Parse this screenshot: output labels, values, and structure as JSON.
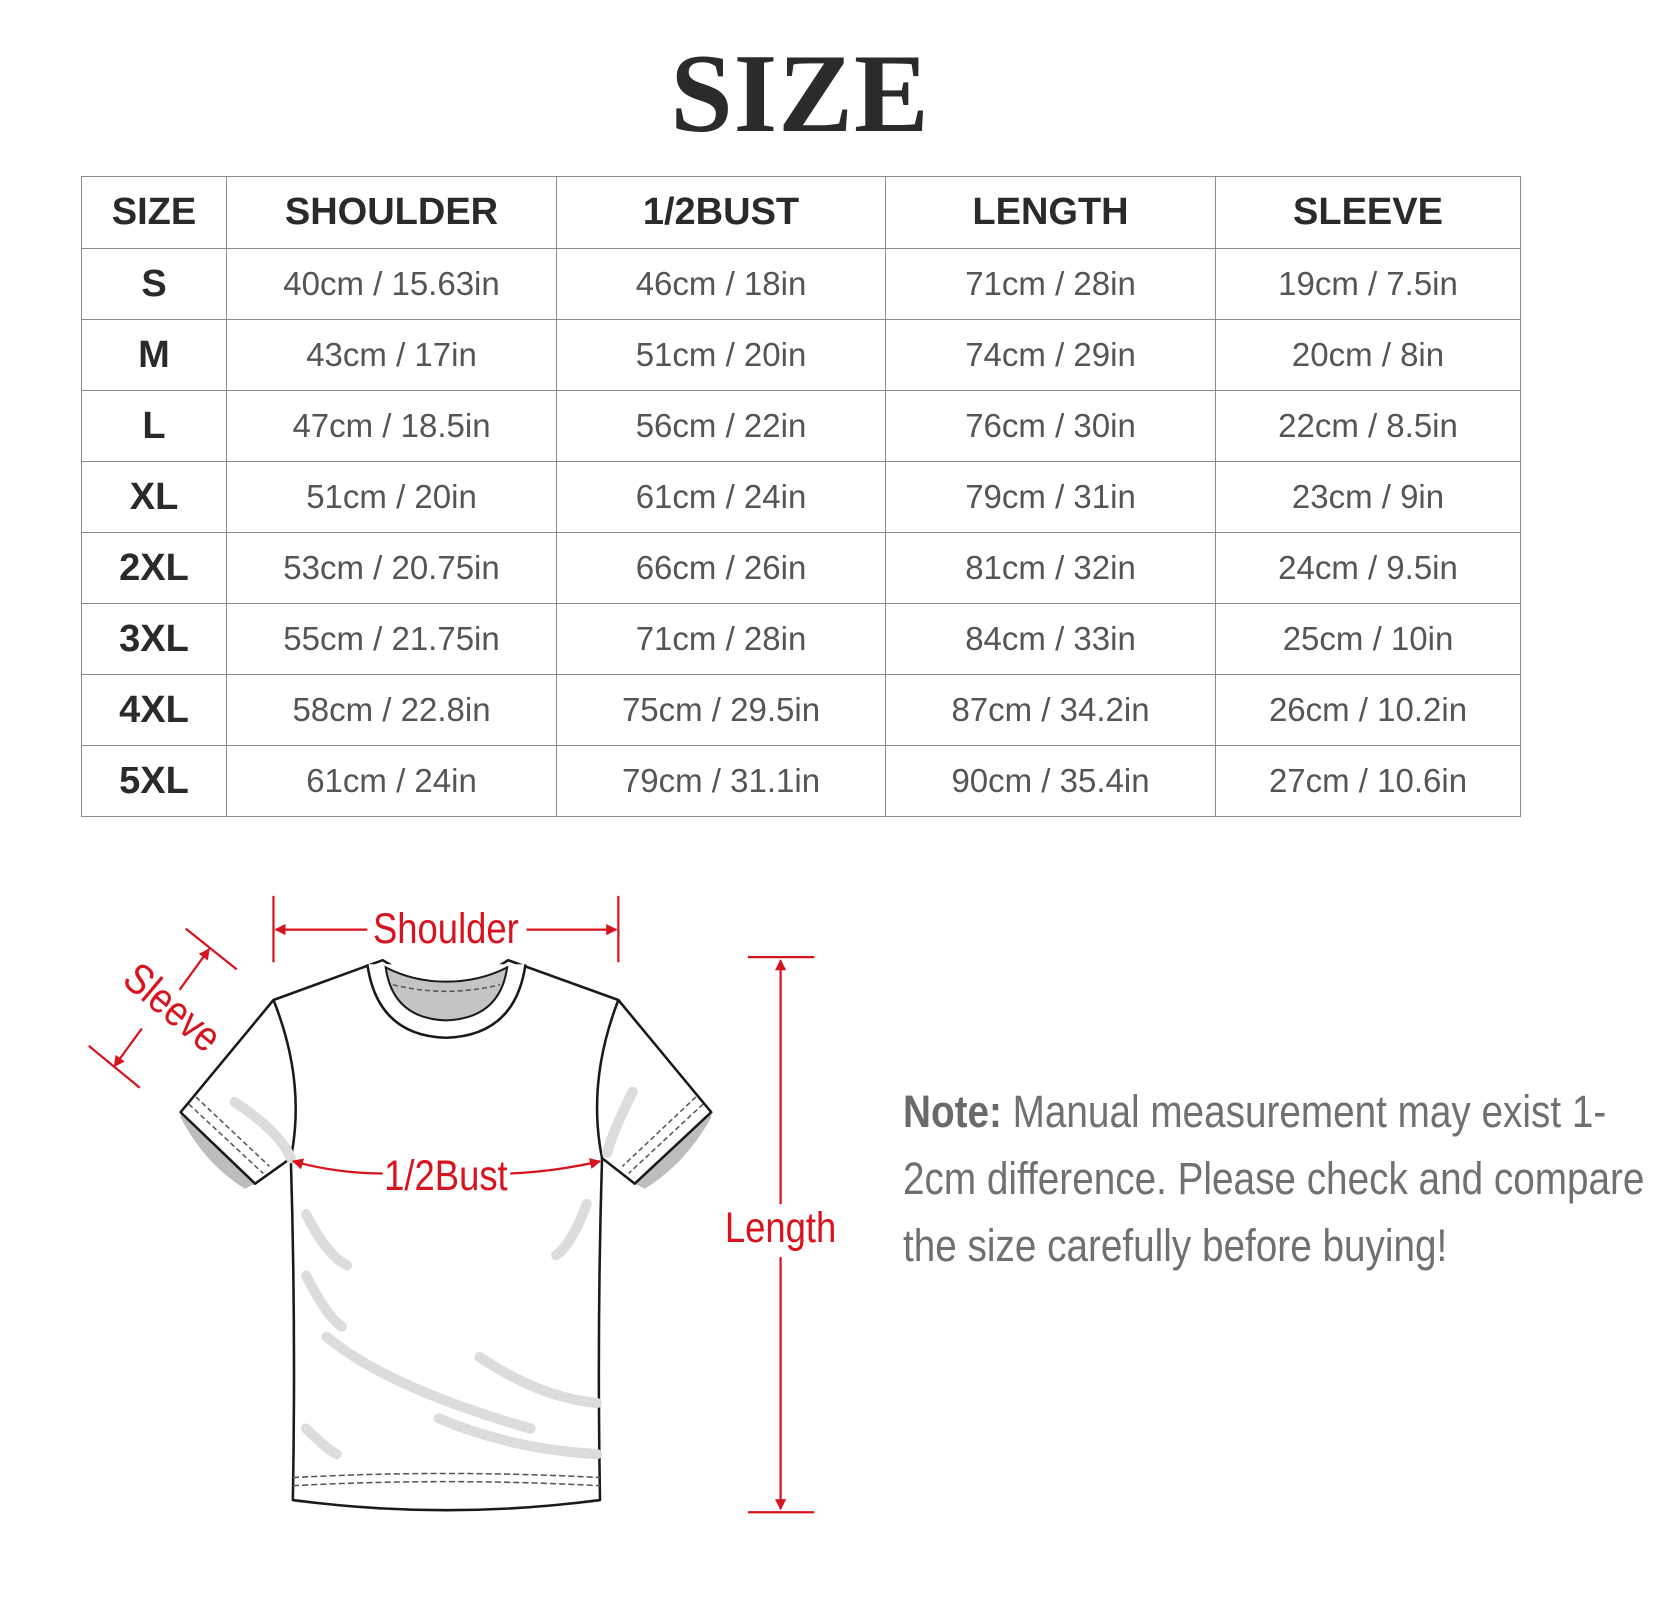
{
  "title": "SIZE",
  "table": {
    "headers": [
      "SIZE",
      "SHOULDER",
      "1/2BUST",
      "LENGTH",
      "SLEEVE"
    ],
    "rows": [
      [
        "S",
        "40cm / 15.63in",
        "46cm / 18in",
        "71cm / 28in",
        "19cm / 7.5in"
      ],
      [
        "M",
        "43cm / 17in",
        "51cm / 20in",
        "74cm / 29in",
        "20cm / 8in"
      ],
      [
        "L",
        "47cm / 18.5in",
        "56cm / 22in",
        "76cm / 30in",
        "22cm / 8.5in"
      ],
      [
        "XL",
        "51cm / 20in",
        "61cm / 24in",
        "79cm / 31in",
        "23cm / 9in"
      ],
      [
        "2XL",
        "53cm / 20.75in",
        "66cm / 26in",
        "81cm / 32in",
        "24cm / 9.5in"
      ],
      [
        "3XL",
        "55cm / 21.75in",
        "71cm / 28in",
        "84cm / 33in",
        "25cm / 10in"
      ],
      [
        "4XL",
        "58cm / 22.8in",
        "75cm / 29.5in",
        "87cm / 34.2in",
        "26cm / 10.2in"
      ],
      [
        "5XL",
        "61cm / 24in",
        "79cm / 31.1in",
        "90cm / 35.4in",
        "27cm / 10.6in"
      ]
    ]
  },
  "diagram": {
    "labels": {
      "shoulder": "Shoulder",
      "sleeve": "Sleeve",
      "bust": "1/2Bust",
      "length": "Length"
    },
    "accent_color": "#d7141e"
  },
  "note": {
    "label": "Note:",
    "text": " Manual measurement may exist 1-2cm difference. Please check and compare the size carefully before buying!"
  }
}
